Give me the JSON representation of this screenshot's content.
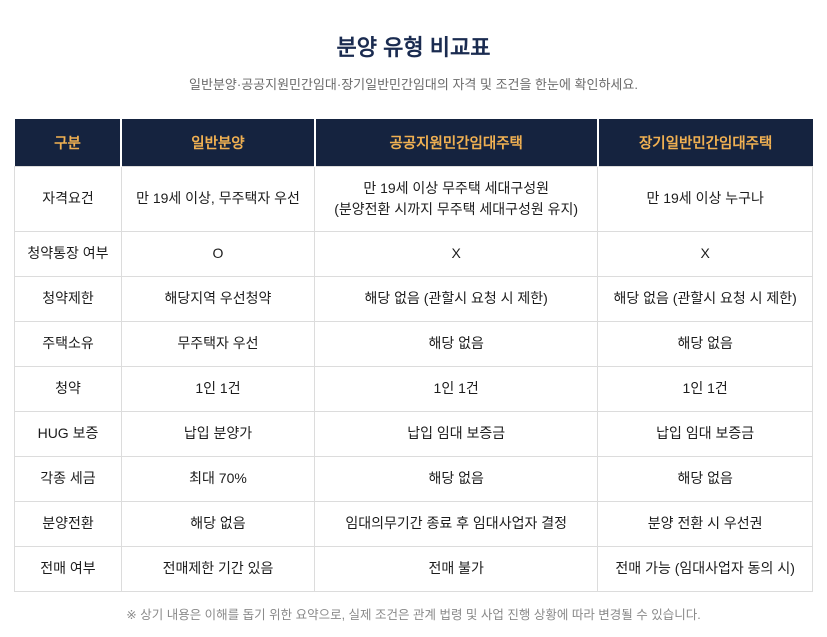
{
  "page": {
    "title": "분양 유형 비교표",
    "subtitle": "일반분양·공공지원민간임대·장기일반민간임대의 자격 및 조건을 한눈에 확인하세요.",
    "footnote": "※ 상기 내용은 이해를 돕기 위한 요약으로, 실제 조건은 관계 법령 및 사업 진행 상황에 따라 변경될 수 있습니다."
  },
  "colors": {
    "header_bg": "#15233f",
    "header_text": "#f0b052",
    "title_text": "#1a2b50",
    "body_text": "#1c1c1c",
    "muted_text": "#6b6b6b",
    "footnote_text": "#8a8a8a",
    "border": "#dcdcdc",
    "header_divider": "#ffffff"
  },
  "table": {
    "headers": [
      "구분",
      "일반분양",
      "공공지원민간임대주택",
      "장기일반민간임대주택"
    ],
    "rows": [
      {
        "label": "자격요건",
        "cells": [
          "만 19세 이상, 무주택자 우선",
          "만 19세 이상 무주택 세대구성원\n(분양전환 시까지 무주택 세대구성원 유지)",
          "만 19세 이상 누구나"
        ]
      },
      {
        "label": "청약통장 여부",
        "cells": [
          "O",
          "X",
          "X"
        ]
      },
      {
        "label": "청약제한",
        "cells": [
          "해당지역 우선청약",
          "해당 없음 (관할시 요청 시 제한)",
          "해당 없음 (관할시 요청 시 제한)"
        ]
      },
      {
        "label": "주택소유",
        "cells": [
          "무주택자 우선",
          "해당 없음",
          "해당 없음"
        ]
      },
      {
        "label": "청약",
        "cells": [
          "1인 1건",
          "1인 1건",
          "1인 1건"
        ]
      },
      {
        "label": "HUG 보증",
        "cells": [
          "납입 분양가",
          "납입 임대 보증금",
          "납입 임대 보증금"
        ]
      },
      {
        "label": "각종 세금",
        "cells": [
          "최대 70%",
          "해당 없음",
          "해당 없음"
        ]
      },
      {
        "label": "분양전환",
        "cells": [
          "해당 없음",
          "임대의무기간 종료 후 임대사업자 결정",
          "분양 전환 시 우선권"
        ]
      },
      {
        "label": "전매 여부",
        "cells": [
          "전매제한 기간 있음",
          "전매 불가",
          "전매 가능 (임대사업자 동의 시)"
        ]
      }
    ]
  }
}
